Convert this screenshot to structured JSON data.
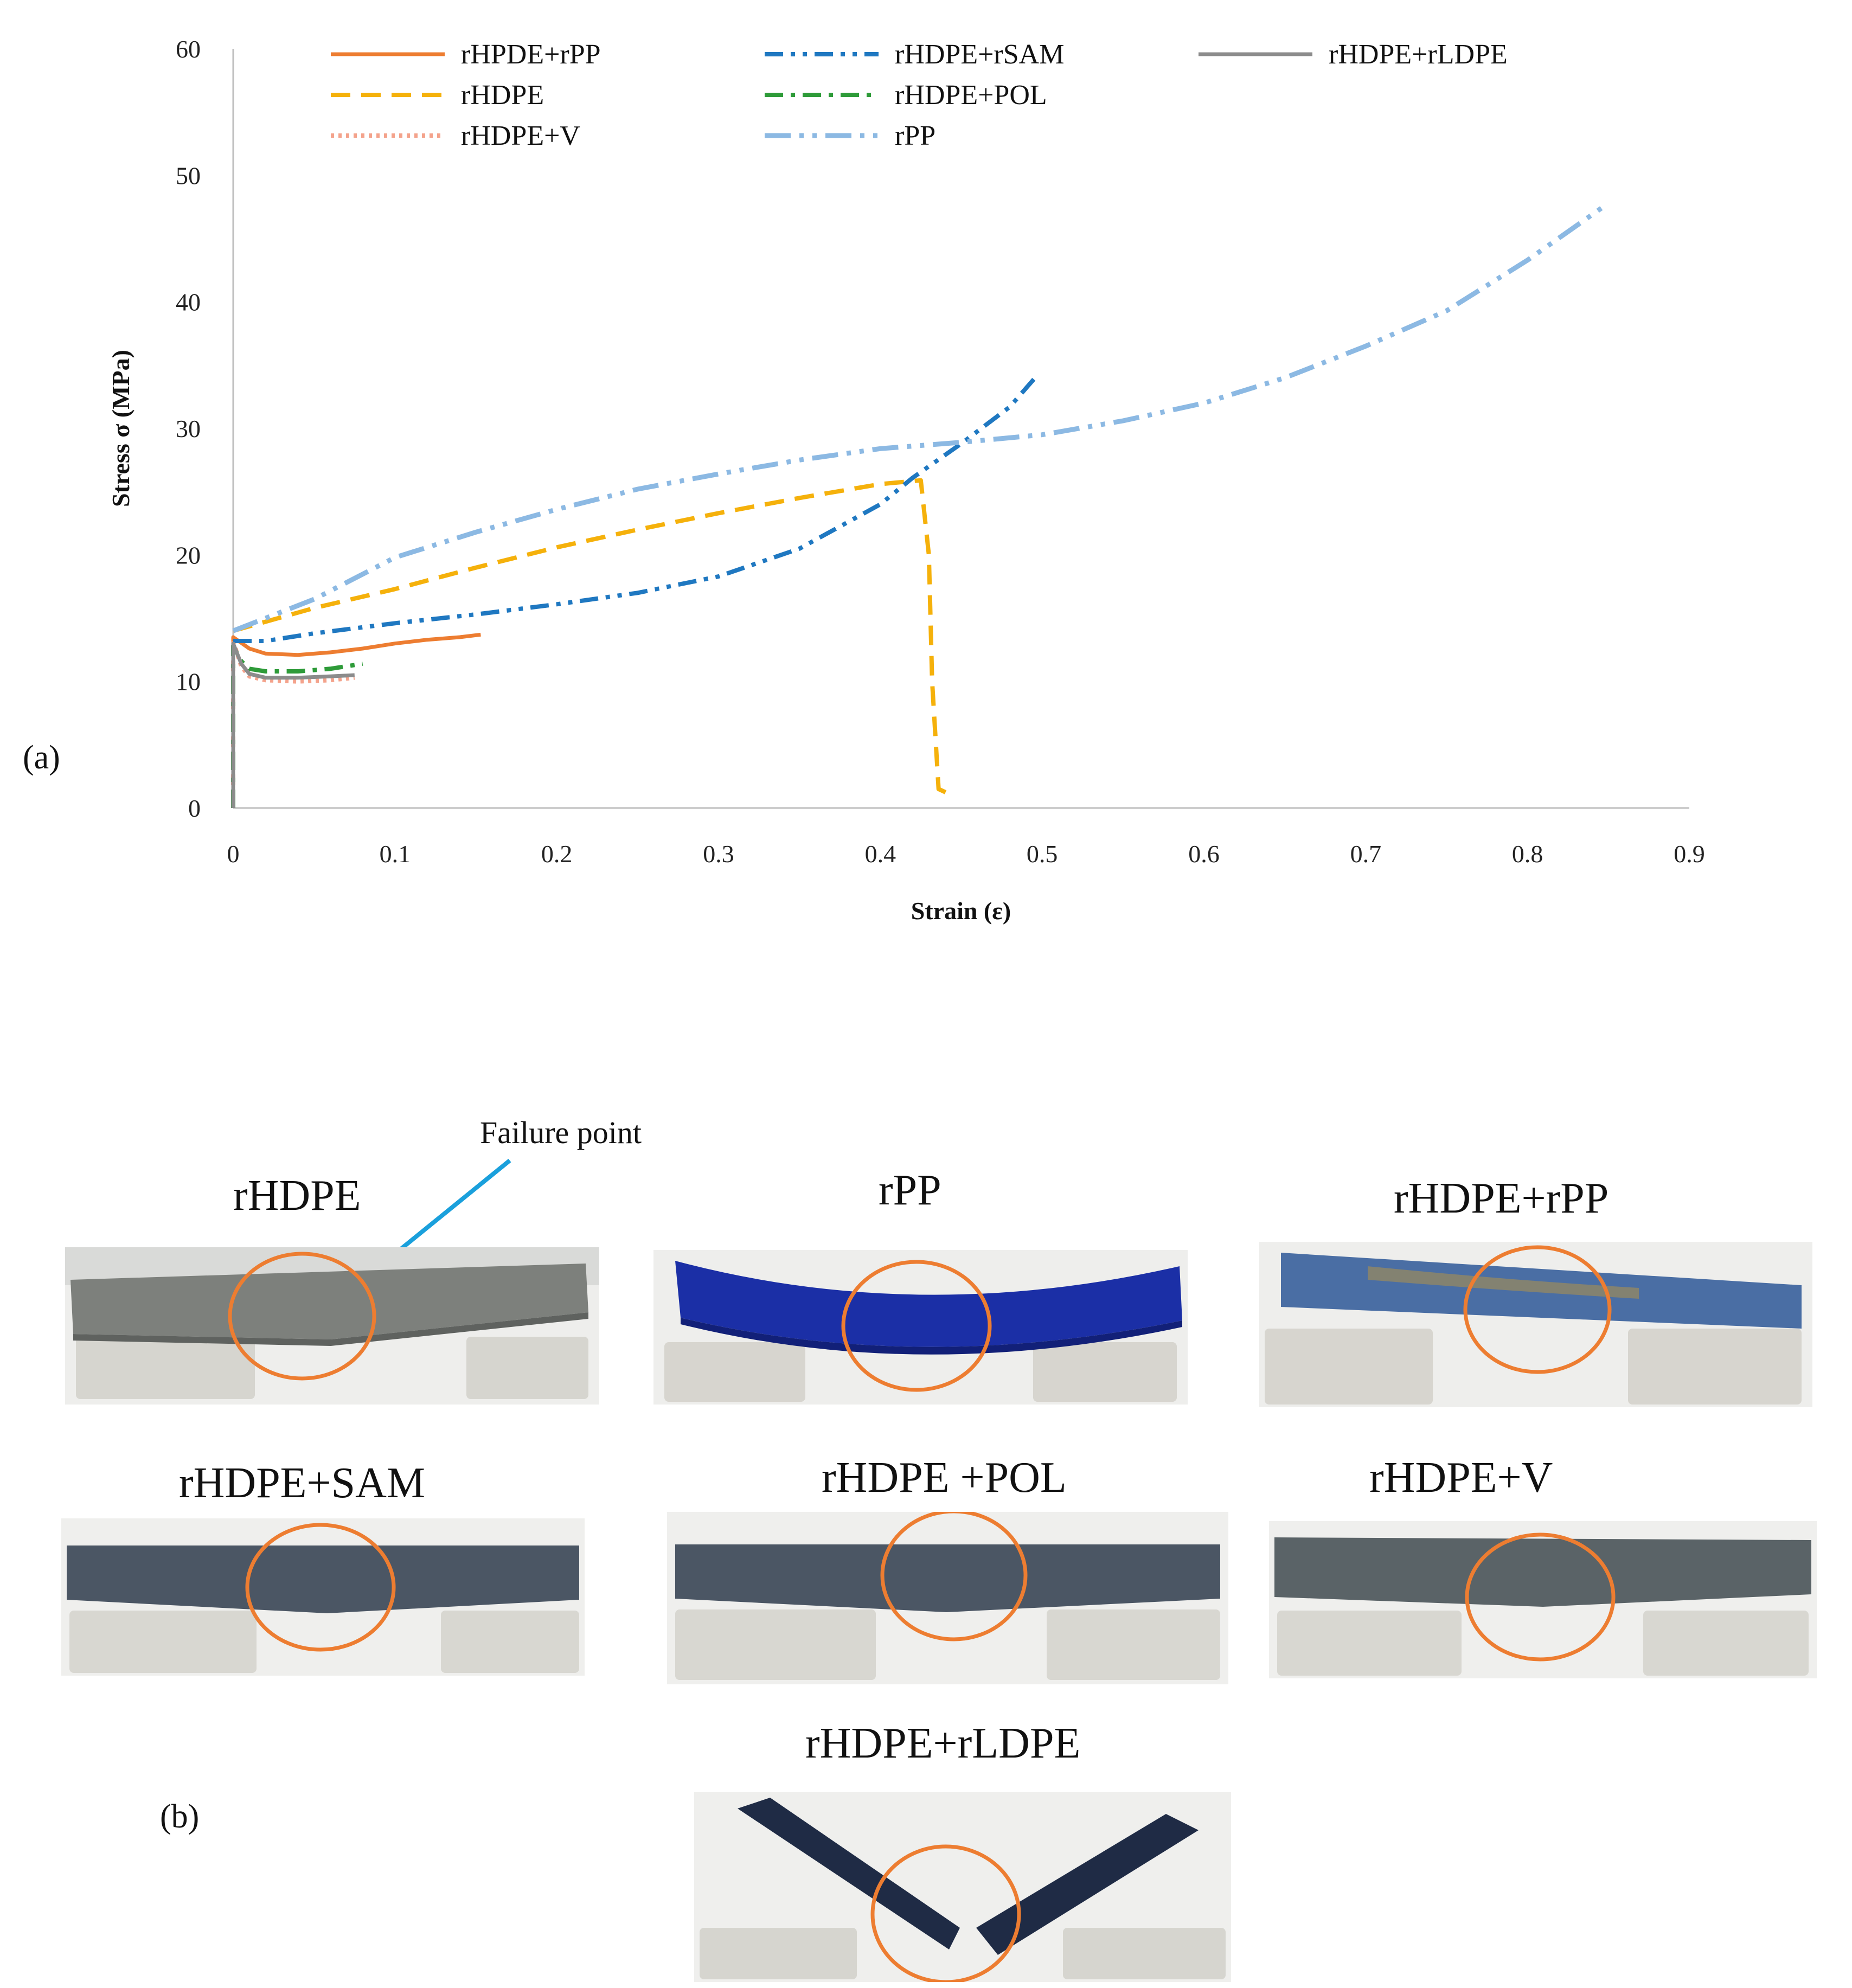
{
  "panel_a_label": "(a)",
  "panel_b_label": "(b)",
  "chart_data": {
    "type": "line",
    "title": "",
    "xlabel": "Strain (ε)",
    "ylabel": "Stress σ (MPa)",
    "xlim": [
      0,
      0.9
    ],
    "ylim": [
      0,
      60
    ],
    "xticks": [
      "0",
      "0.1",
      "0.2",
      "0.3",
      "0.4",
      "0.5",
      "0.6",
      "0.7",
      "0.8",
      "0.9"
    ],
    "yticks": [
      "0",
      "10",
      "20",
      "30",
      "40",
      "50",
      "60"
    ],
    "grid": false,
    "legend_position": "top",
    "series": [
      {
        "name": "rHPDE+rPP",
        "color": "#ED7D31",
        "dash": "solid",
        "points": [
          [
            0,
            0
          ],
          [
            0,
            13.5
          ],
          [
            0.01,
            12.6
          ],
          [
            0.02,
            12.2
          ],
          [
            0.04,
            12.1
          ],
          [
            0.06,
            12.3
          ],
          [
            0.08,
            12.6
          ],
          [
            0.1,
            13.0
          ],
          [
            0.12,
            13.3
          ],
          [
            0.14,
            13.5
          ],
          [
            0.153,
            13.7
          ]
        ]
      },
      {
        "name": "rHDPE",
        "color": "#F5B10B",
        "dash": "dash",
        "points": [
          [
            0,
            14
          ],
          [
            0.05,
            15.8
          ],
          [
            0.1,
            17.3
          ],
          [
            0.15,
            19.0
          ],
          [
            0.2,
            20.6
          ],
          [
            0.25,
            22.0
          ],
          [
            0.3,
            23.3
          ],
          [
            0.35,
            24.5
          ],
          [
            0.4,
            25.6
          ],
          [
            0.425,
            25.9
          ],
          [
            0.43,
            20
          ],
          [
            0.432,
            10
          ],
          [
            0.436,
            1.5
          ],
          [
            0.441,
            1.2
          ],
          [
            0.443,
            1.2
          ]
        ]
      },
      {
        "name": "rHDPE+V",
        "color": "#F4A38C",
        "dash": "dot",
        "points": [
          [
            0,
            0
          ],
          [
            0,
            13.2
          ],
          [
            0.005,
            11.2
          ],
          [
            0.01,
            10.4
          ],
          [
            0.02,
            10.1
          ],
          [
            0.04,
            10.0
          ],
          [
            0.06,
            10.1
          ],
          [
            0.075,
            10.3
          ]
        ]
      },
      {
        "name": "rHDPE+rSAM",
        "color": "#1F78C1",
        "dash": "dashdotdot",
        "points": [
          [
            0,
            13.2
          ],
          [
            0.02,
            13.2
          ],
          [
            0.05,
            13.8
          ],
          [
            0.1,
            14.6
          ],
          [
            0.15,
            15.3
          ],
          [
            0.2,
            16.1
          ],
          [
            0.25,
            17.0
          ],
          [
            0.3,
            18.3
          ],
          [
            0.35,
            20.5
          ],
          [
            0.4,
            24.0
          ],
          [
            0.42,
            26.1
          ],
          [
            0.45,
            28.8
          ],
          [
            0.48,
            31.7
          ],
          [
            0.497,
            34.2
          ]
        ]
      },
      {
        "name": "rHDPE+POL",
        "color": "#2E9B39",
        "dash": "dashdot",
        "points": [
          [
            0,
            0
          ],
          [
            0,
            12.8
          ],
          [
            0.005,
            11.6
          ],
          [
            0.01,
            11.0
          ],
          [
            0.02,
            10.8
          ],
          [
            0.04,
            10.8
          ],
          [
            0.06,
            11.0
          ],
          [
            0.08,
            11.4
          ]
        ]
      },
      {
        "name": "rPP",
        "color": "#8CB9E3",
        "dash": "longdashdotdot",
        "points": [
          [
            0,
            14
          ],
          [
            0.05,
            16.5
          ],
          [
            0.1,
            19.8
          ],
          [
            0.15,
            21.8
          ],
          [
            0.2,
            23.6
          ],
          [
            0.25,
            25.2
          ],
          [
            0.3,
            26.4
          ],
          [
            0.35,
            27.5
          ],
          [
            0.4,
            28.4
          ],
          [
            0.45,
            28.9
          ],
          [
            0.5,
            29.5
          ],
          [
            0.55,
            30.6
          ],
          [
            0.6,
            32.0
          ],
          [
            0.65,
            34.0
          ],
          [
            0.7,
            36.5
          ],
          [
            0.75,
            39.3
          ],
          [
            0.8,
            43.3
          ],
          [
            0.85,
            47.8
          ]
        ]
      },
      {
        "name": "rHDPE+rLDPE",
        "color": "#8C8C8C",
        "dash": "solid",
        "points": [
          [
            0,
            0
          ],
          [
            0,
            13.0
          ],
          [
            0.005,
            11.4
          ],
          [
            0.01,
            10.6
          ],
          [
            0.02,
            10.3
          ],
          [
            0.04,
            10.3
          ],
          [
            0.06,
            10.4
          ],
          [
            0.075,
            10.5
          ]
        ]
      }
    ]
  },
  "photos": {
    "callout": "Failure point",
    "specimens": [
      {
        "label": "rHDPE",
        "color": "#7d807c"
      },
      {
        "label": "rPP",
        "color": "#1b2fa6"
      },
      {
        "label": "rHDPE+rPP",
        "color": "#4a6ea4"
      },
      {
        "label": "rHDPE+SAM",
        "color": "#4b5664"
      },
      {
        "label": "rHDPE +POL",
        "color": "#4b5664"
      },
      {
        "label": "rHDPE+V",
        "color": "#5a6367"
      },
      {
        "label": "rHDPE+rLDPE",
        "color": "#1f2b45"
      }
    ],
    "marker_color": "#ED7D31",
    "arrow_color": "#1aa0dc"
  }
}
